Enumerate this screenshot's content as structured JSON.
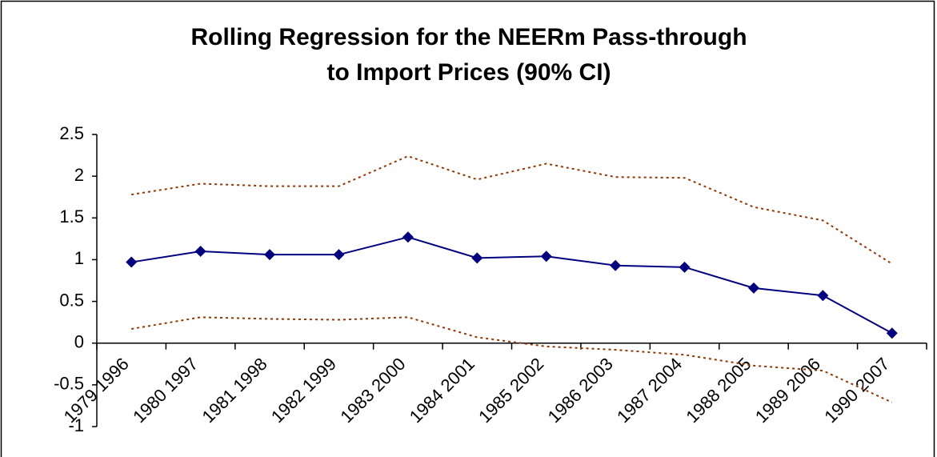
{
  "chart_data": {
    "type": "line",
    "title": [
      "Rolling Regression for the NEERm Pass-through",
      "to Import Prices (90% CI)"
    ],
    "categories": [
      "1979 1996",
      "1980 1997",
      "1981 1998",
      "1982 1999",
      "1983 2000",
      "1984 2001",
      "1985 2002",
      "1986 2003",
      "1987 2004",
      "1988 2005",
      "1989 2006",
      "1990 2007"
    ],
    "series": [
      {
        "color": "#000080",
        "style": "solid",
        "markers": true,
        "values": [
          0.97,
          1.1,
          1.06,
          1.06,
          1.27,
          1.02,
          1.04,
          0.93,
          0.91,
          0.66,
          0.57,
          0.12
        ]
      },
      {
        "color": "#993300",
        "style": "dotted",
        "markers": false,
        "values": [
          1.78,
          1.91,
          1.88,
          1.88,
          2.24,
          1.96,
          2.15,
          1.99,
          1.98,
          1.63,
          1.47,
          0.95
        ]
      },
      {
        "color": "#993300",
        "style": "dotted",
        "markers": false,
        "values": [
          0.17,
          0.31,
          0.29,
          0.28,
          0.31,
          0.07,
          -0.04,
          -0.08,
          -0.14,
          -0.27,
          -0.33,
          -0.71
        ]
      }
    ],
    "ylim": [
      -1,
      2.5
    ],
    "yticks": [
      2.5,
      2,
      1.5,
      1,
      0.5,
      0,
      -0.5,
      -1
    ],
    "grid": false
  }
}
